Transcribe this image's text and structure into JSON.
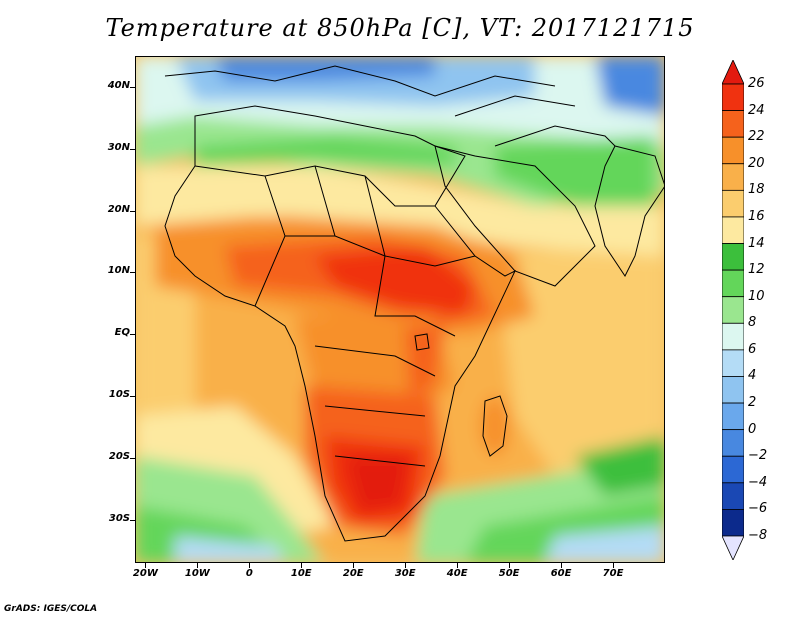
{
  "title": "Temperature at 850hPa [C], VT: 2017121715",
  "footer": "GrADS: IGES/COLA",
  "map": {
    "projection": "latlon",
    "lon_range": [
      -22,
      80
    ],
    "lat_range": [
      -37,
      45
    ],
    "lat_ticks": [
      {
        "label": "40N",
        "value": 40
      },
      {
        "label": "30N",
        "value": 30
      },
      {
        "label": "20N",
        "value": 20
      },
      {
        "label": "10N",
        "value": 10
      },
      {
        "label": "EQ",
        "value": 0
      },
      {
        "label": "10S",
        "value": -10
      },
      {
        "label": "20S",
        "value": -20
      },
      {
        "label": "30S",
        "value": -30
      }
    ],
    "lon_ticks": [
      {
        "label": "20W",
        "value": -20
      },
      {
        "label": "10W",
        "value": -10
      },
      {
        "label": "0",
        "value": 0
      },
      {
        "label": "10E",
        "value": 10
      },
      {
        "label": "20E",
        "value": 20
      },
      {
        "label": "30E",
        "value": 30
      },
      {
        "label": "40E",
        "value": 40
      },
      {
        "label": "50E",
        "value": 50
      },
      {
        "label": "60E",
        "value": 60
      },
      {
        "label": "70E",
        "value": 70
      }
    ]
  },
  "colorbar": {
    "levels": [
      "26",
      "24",
      "22",
      "20",
      "18",
      "16",
      "14",
      "12",
      "10",
      "8",
      "6",
      "4",
      "2",
      "0",
      "−2",
      "−4",
      "−6",
      "−8"
    ],
    "colors": {
      "above_26": "#e31a0f",
      "24_26": "#f03210",
      "22_24": "#f5621c",
      "20_22": "#f7902a",
      "18_20": "#f9b04a",
      "16_18": "#fbcd6e",
      "14_16": "#fde9a0",
      "12_14": "#3cbf3c",
      "10_12": "#63d65a",
      "8_10": "#9ae68f",
      "6_8": "#dcf7f0",
      "4_6": "#b4dcf6",
      "2_4": "#8fc4f0",
      "0_2": "#6aa8ec",
      "m2_0": "#4888e0",
      "m4_m2": "#2c68d4",
      "m6_m4": "#1a48b4",
      "m8_m6": "#0c2a8c",
      "below_m8": "#e4e4ff"
    }
  }
}
